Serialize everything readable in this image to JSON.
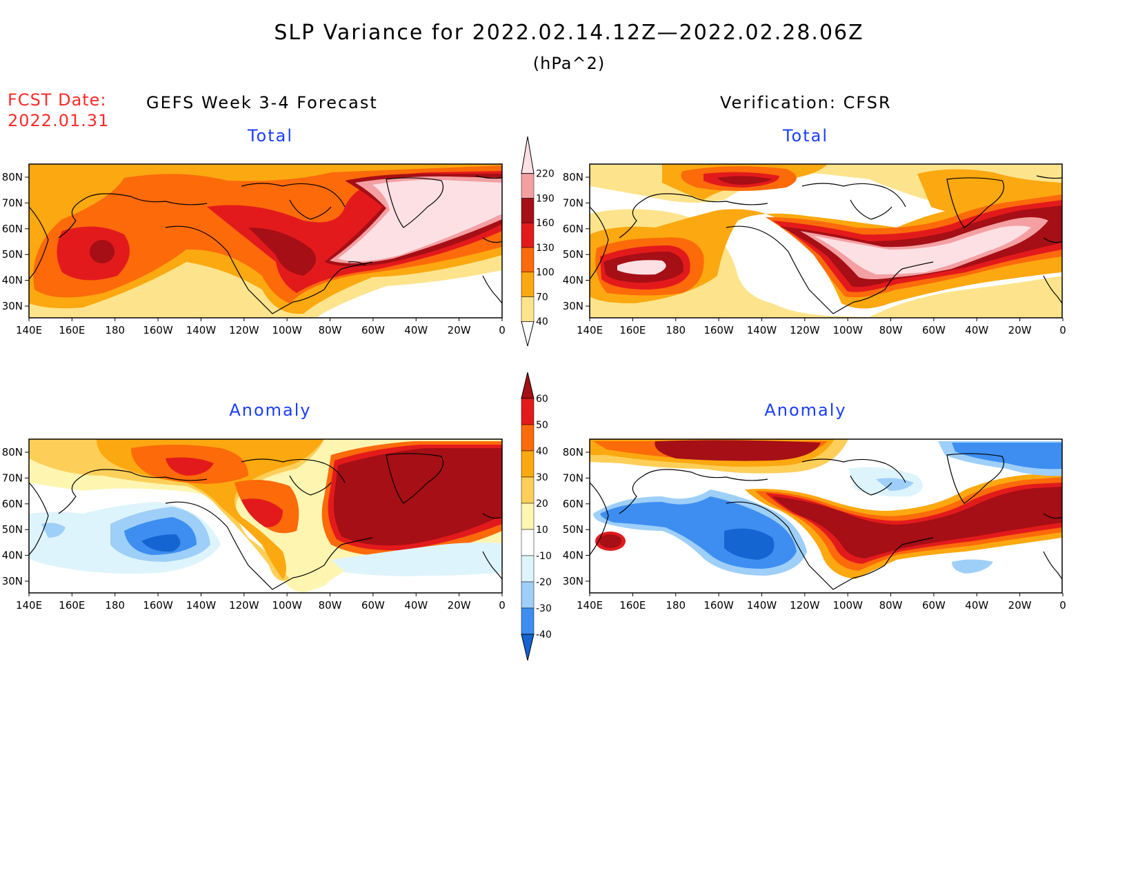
{
  "header": {
    "title": "SLP Variance for 2022.02.14.12Z—2022.02.28.06Z",
    "units": "(hPa^2)",
    "fcst_label": "FCST Date:",
    "fcst_date": "2022.01.31",
    "left_heading": "GEFS Week 3-4 Forecast",
    "right_heading": "Verification: CFSR"
  },
  "panels": [
    {
      "id": "fcst-total",
      "title": "Total"
    },
    {
      "id": "verif-total",
      "title": "Total"
    },
    {
      "id": "fcst-anom",
      "title": "Anomaly"
    },
    {
      "id": "verif-anom",
      "title": "Anomaly"
    }
  ],
  "axes": {
    "lat_labels": [
      "80N",
      "70N",
      "60N",
      "50N",
      "40N",
      "30N"
    ],
    "lon_labels": [
      "140E",
      "160E",
      "180",
      "160W",
      "140W",
      "120W",
      "100W",
      "80W",
      "60W",
      "40W",
      "20W",
      "0"
    ]
  },
  "colorbars": {
    "total": {
      "levels": [
        "40",
        "70",
        "100",
        "130",
        "160",
        "190",
        "220"
      ],
      "colors": [
        "#ffffff",
        "#fde48c",
        "#fca810",
        "#fc6a0a",
        "#e31a1c",
        "#a50f15",
        "#f4a0a3",
        "#fde0e4"
      ]
    },
    "anomaly": {
      "levels": [
        "60",
        "50",
        "40",
        "30",
        "20",
        "10",
        "-10",
        "-20",
        "-30",
        "-40"
      ],
      "colors": [
        "#a50f15",
        "#e31a1c",
        "#fc6a0a",
        "#fca810",
        "#fdcf58",
        "#fef5b0",
        "#ffffff",
        "#def4fc",
        "#9ecff8",
        "#3d8ef0",
        "#1464d2"
      ]
    }
  }
}
